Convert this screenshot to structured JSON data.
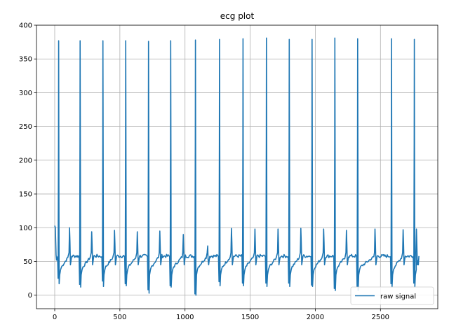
{
  "chart_data": {
    "type": "line",
    "title": "ecg plot",
    "xlabel": "",
    "ylabel": "",
    "xlim": [
      -140,
      2940
    ],
    "ylim": [
      -20,
      400
    ],
    "x_ticks": [
      0,
      500,
      1000,
      1500,
      2000,
      2500
    ],
    "y_ticks": [
      0,
      50,
      100,
      150,
      200,
      250,
      300,
      350,
      400
    ],
    "grid": true,
    "legend": {
      "position": "bottom-right",
      "entries": [
        "raw signal"
      ]
    },
    "line_color": "#1f77b4",
    "series": [
      {
        "name": "raw signal",
        "beats": [
          {
            "pos": 30,
            "peak": 377,
            "pre_dip": 25,
            "s_min": 17,
            "t_peak": 100
          },
          {
            "pos": 195,
            "peak": 377,
            "pre_dip": 16,
            "s_min": 12,
            "t_peak": 94
          },
          {
            "pos": 370,
            "peak": 377,
            "pre_dip": 21,
            "s_min": 13,
            "t_peak": 96
          },
          {
            "pos": 545,
            "peak": 377,
            "pre_dip": 17,
            "s_min": 14,
            "t_peak": 94
          },
          {
            "pos": 720,
            "peak": 376,
            "pre_dip": 8,
            "s_min": 3,
            "t_peak": 95
          },
          {
            "pos": 890,
            "peak": 377,
            "pre_dip": 14,
            "s_min": 12,
            "t_peak": 90
          },
          {
            "pos": 1080,
            "peak": 378,
            "pre_dip": 2,
            "s_min": 0,
            "t_peak": 73
          },
          {
            "pos": 1265,
            "peak": 379,
            "pre_dip": 20,
            "s_min": 14,
            "t_peak": 99
          },
          {
            "pos": 1445,
            "peak": 380,
            "pre_dip": 18,
            "s_min": 14,
            "t_peak": 98
          },
          {
            "pos": 1625,
            "peak": 381,
            "pre_dip": 18,
            "s_min": 13,
            "t_peak": 98
          },
          {
            "pos": 1800,
            "peak": 379,
            "pre_dip": 18,
            "s_min": 13,
            "t_peak": 99
          },
          {
            "pos": 1975,
            "peak": 379,
            "pre_dip": 15,
            "s_min": 13,
            "t_peak": 98
          },
          {
            "pos": 2150,
            "peak": 381,
            "pre_dip": 10,
            "s_min": 7,
            "t_peak": 96
          },
          {
            "pos": 2325,
            "peak": 380,
            "pre_dip": 13,
            "s_min": 7,
            "t_peak": 98
          },
          {
            "pos": 2585,
            "peak": 380,
            "pre_dip": 17,
            "s_min": 12,
            "t_peak": 97
          },
          {
            "pos": 2760,
            "peak": 379,
            "pre_dip": 18,
            "s_min": 12,
            "t_peak": 98
          }
        ],
        "baseline": 55,
        "start_value": 103,
        "end": {
          "x": 2795,
          "y": 58
        }
      }
    ]
  }
}
